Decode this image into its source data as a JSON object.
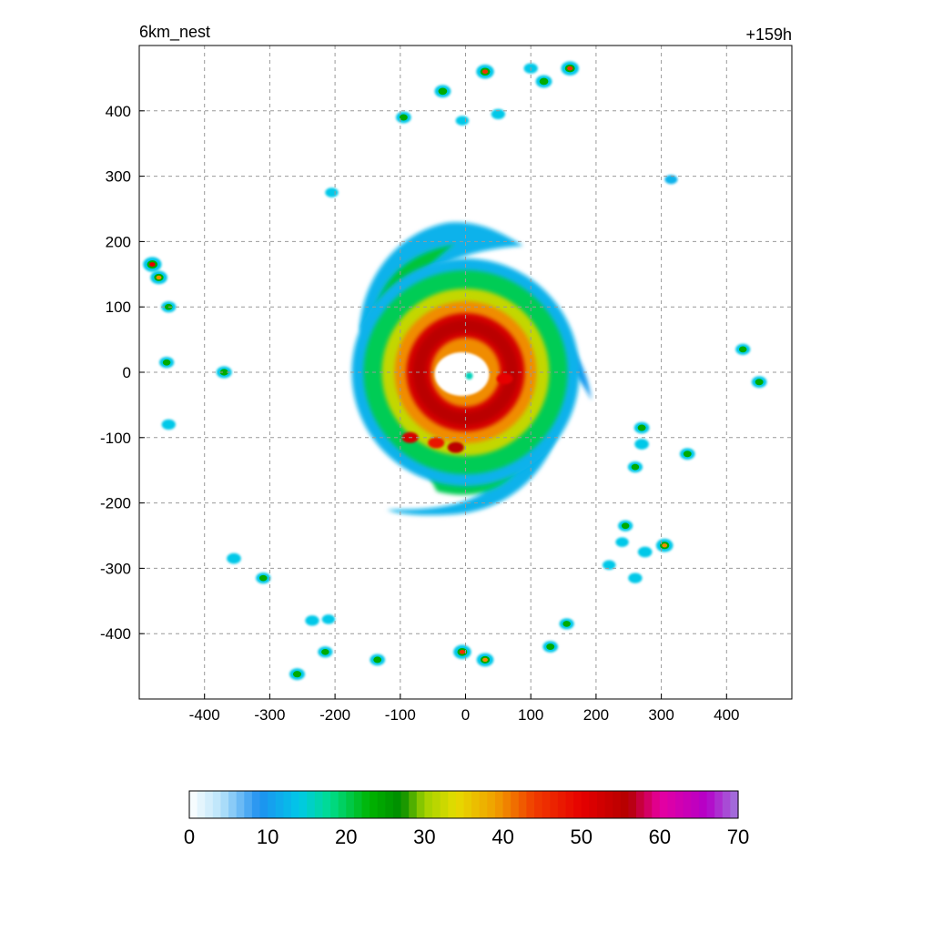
{
  "chart_data": {
    "type": "heatmap",
    "title_left": "6km_nest",
    "title_right": "+159h",
    "xlabel": "",
    "ylabel": "",
    "xlim": [
      -500,
      500
    ],
    "ylim": [
      -500,
      500
    ],
    "x_ticks": [
      -400,
      -300,
      -200,
      -100,
      0,
      100,
      200,
      300,
      400
    ],
    "y_ticks": [
      400,
      300,
      200,
      100,
      0,
      -100,
      -200,
      -300,
      -400
    ],
    "x_tick_labels": [
      "-400",
      "-300",
      "-200",
      "-100",
      "0",
      "100",
      "200",
      "300",
      "400"
    ],
    "y_tick_labels": [
      "400",
      "300",
      "200",
      "100",
      "0",
      "-100",
      "-200",
      "-300",
      "-400"
    ],
    "grid": true,
    "colorbar": {
      "min": 0,
      "max": 70,
      "tick_values": [
        0,
        10,
        20,
        30,
        40,
        50,
        60,
        70
      ],
      "tick_labels": [
        "0",
        "10",
        "20",
        "30",
        "40",
        "50",
        "60",
        "70"
      ],
      "stops": [
        {
          "v": 0,
          "c": "#ffffff"
        },
        {
          "v": 4,
          "c": "#b8e4fa"
        },
        {
          "v": 9,
          "c": "#1e90f0"
        },
        {
          "v": 14,
          "c": "#00c8e8"
        },
        {
          "v": 18,
          "c": "#00dc8c"
        },
        {
          "v": 23,
          "c": "#00b400"
        },
        {
          "v": 27,
          "c": "#008c00"
        },
        {
          "v": 30,
          "c": "#a0d200"
        },
        {
          "v": 34,
          "c": "#e6dc00"
        },
        {
          "v": 39,
          "c": "#f0a000"
        },
        {
          "v": 44,
          "c": "#f03c00"
        },
        {
          "v": 50,
          "c": "#e60000"
        },
        {
          "v": 56,
          "c": "#b40000"
        },
        {
          "v": 60,
          "c": "#e600a0"
        },
        {
          "v": 66,
          "c": "#b400c8"
        },
        {
          "v": 70,
          "c": "#a078dc"
        }
      ]
    },
    "features": {
      "storm_center": [
        0,
        0
      ],
      "eye_radius_km": 40,
      "eyewall_max_dbz": 55,
      "outer_extent_km": 210,
      "scattered_cells": [
        [
          -480,
          165,
          50
        ],
        [
          -470,
          145,
          40
        ],
        [
          -455,
          100,
          25
        ],
        [
          -458,
          15,
          25
        ],
        [
          -370,
          0,
          30
        ],
        [
          -455,
          -80,
          20
        ],
        [
          -355,
          -285,
          22
        ],
        [
          -310,
          -315,
          25
        ],
        [
          -235,
          -380,
          20
        ],
        [
          -210,
          -378,
          15
        ],
        [
          -215,
          -428,
          25
        ],
        [
          -258,
          -462,
          30
        ],
        [
          -135,
          -440,
          28
        ],
        [
          -5,
          -428,
          45
        ],
        [
          30,
          -440,
          40
        ],
        [
          130,
          -420,
          28
        ],
        [
          155,
          -385,
          25
        ],
        [
          -95,
          390,
          28
        ],
        [
          -35,
          430,
          35
        ],
        [
          30,
          460,
          45
        ],
        [
          -5,
          385,
          15
        ],
        [
          50,
          395,
          20
        ],
        [
          100,
          465,
          20
        ],
        [
          120,
          445,
          35
        ],
        [
          160,
          465,
          45
        ],
        [
          -205,
          275,
          15
        ],
        [
          315,
          295,
          12
        ],
        [
          425,
          35,
          25
        ],
        [
          450,
          -15,
          28
        ],
        [
          270,
          -85,
          28
        ],
        [
          270,
          -110,
          22
        ],
        [
          260,
          -145,
          25
        ],
        [
          340,
          -125,
          28
        ],
        [
          245,
          -235,
          25
        ],
        [
          240,
          -260,
          15
        ],
        [
          275,
          -275,
          22
        ],
        [
          305,
          -265,
          40
        ],
        [
          220,
          -295,
          15
        ],
        [
          260,
          -315,
          20
        ]
      ]
    }
  }
}
